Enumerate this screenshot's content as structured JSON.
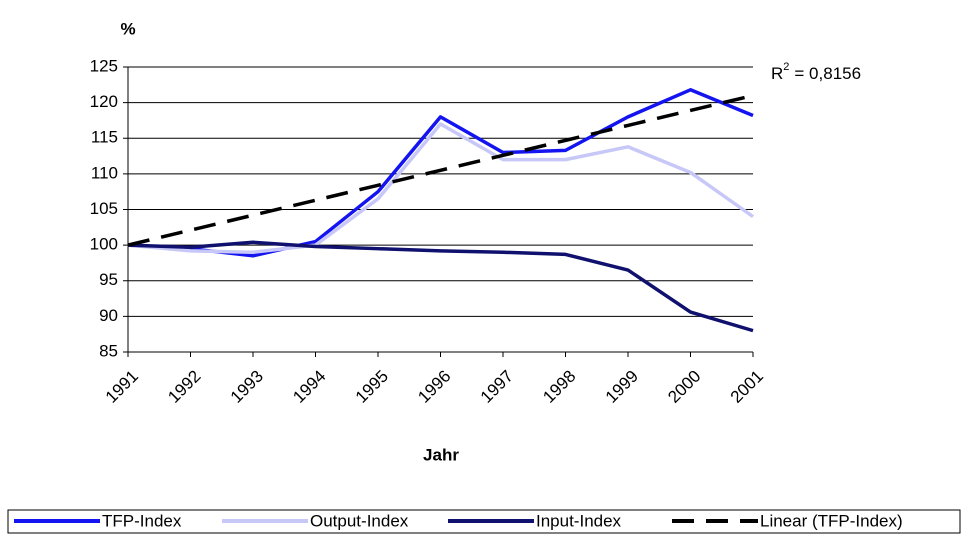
{
  "chart_data": {
    "type": "line",
    "y_label": "%",
    "x_label": "Jahr",
    "annotation": {
      "base": "R",
      "sup": "2",
      "rest": "= 0,8156"
    },
    "categories": [
      "1991",
      "1992",
      "1993",
      "1994",
      "1995",
      "1996",
      "1997",
      "1998",
      "1999",
      "2000",
      "2001"
    ],
    "series": [
      {
        "name": "TFP-Index",
        "color": "#1414f0",
        "style": "solid",
        "values": [
          100,
          99.5,
          98.5,
          100.5,
          107.5,
          118,
          113,
          113.3,
          118,
          121.8,
          118.2
        ]
      },
      {
        "name": "Output-Index",
        "color": "#c8c8f8",
        "style": "solid",
        "values": [
          100,
          99.2,
          99,
          100,
          106.5,
          117,
          112,
          112,
          113.8,
          110.2,
          104
        ]
      },
      {
        "name": "Input-Index",
        "color": "#10106e",
        "style": "solid",
        "values": [
          100,
          99.7,
          100.4,
          99.8,
          99.5,
          99.2,
          99,
          98.7,
          96.5,
          90.6,
          88
        ]
      },
      {
        "name": "Linear (TFP-Index)",
        "color": "#000000",
        "style": "dashed",
        "values": [
          100,
          102.1,
          104.2,
          106.3,
          108.4,
          110.5,
          112.6,
          114.7,
          116.8,
          118.9,
          121
        ]
      }
    ],
    "ylim": [
      85,
      125
    ],
    "yticks": [
      85,
      90,
      95,
      100,
      105,
      110,
      115,
      120,
      125
    ],
    "grid": true
  }
}
